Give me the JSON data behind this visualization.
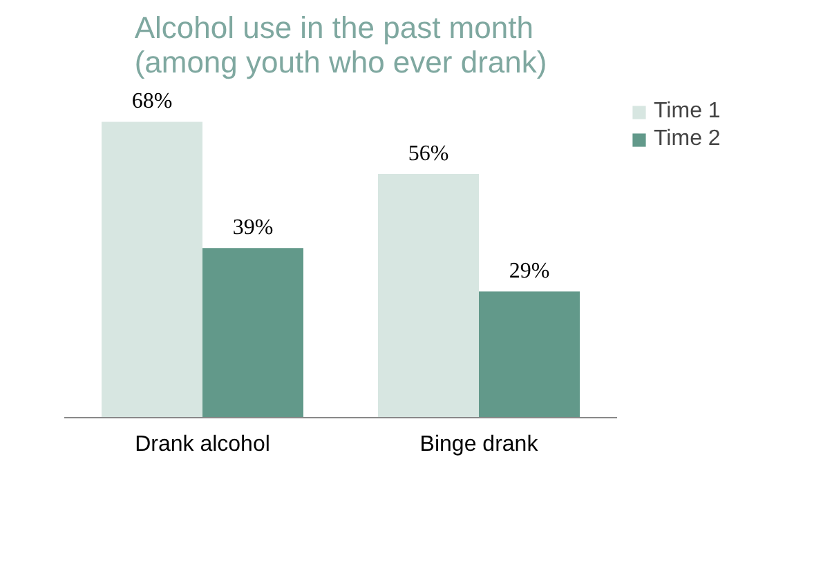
{
  "chart_data": {
    "type": "bar",
    "title": "Alcohol use in the past month\n(among youth who ever drank)",
    "categories": [
      "Drank alcohol",
      "Binge drank"
    ],
    "series": [
      {
        "name": "Time 1",
        "color": "#d7e6e1",
        "values": [
          68,
          56
        ],
        "value_labels": [
          "68%",
          "56%"
        ]
      },
      {
        "name": "Time 2",
        "color": "#62998a",
        "values": [
          39,
          29
        ],
        "value_labels": [
          "39%",
          "29%"
        ]
      }
    ],
    "legend": "right",
    "tick_labels": "x"
  }
}
